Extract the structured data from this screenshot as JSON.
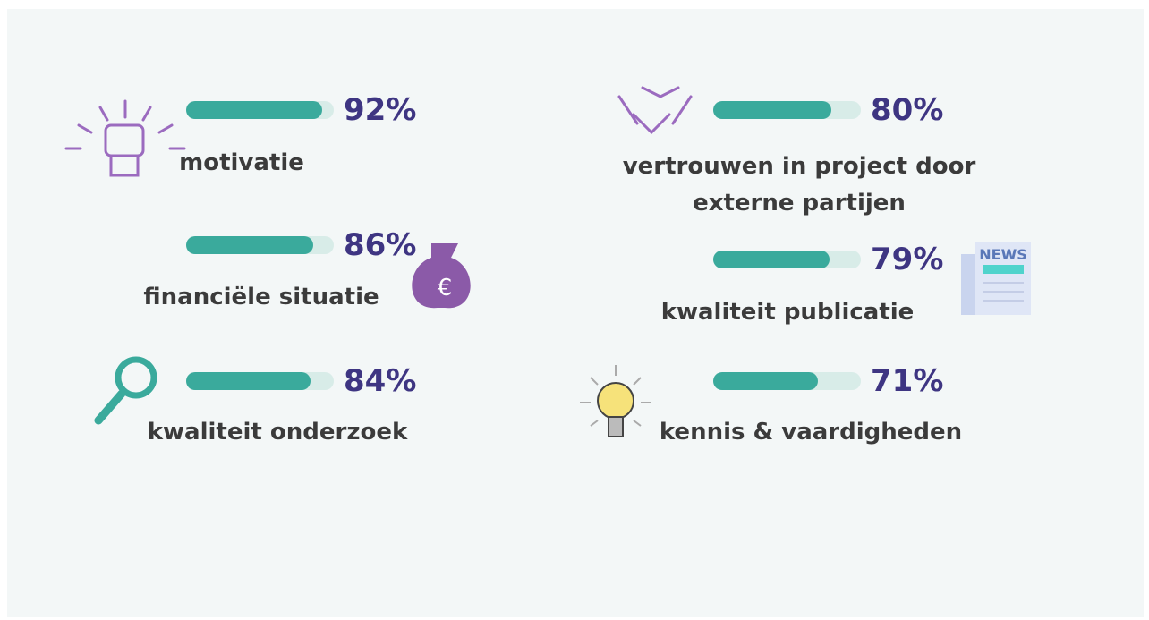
{
  "chart_data": {
    "type": "progress",
    "categories": [
      "motivatie",
      "financiële situatie",
      "kwaliteit onderzoek",
      "vertrouwen in project door externe partijen",
      "kwaliteit publicatie",
      "kennis & vaardigheden"
    ],
    "values": [
      92,
      86,
      84,
      80,
      79,
      71
    ],
    "value_labels": [
      "92%",
      "86%",
      "84%",
      "80%",
      "79%",
      "71%"
    ],
    "xlim": [
      0,
      100
    ],
    "color": "#3aaa9c",
    "track_color": "#d8ece8"
  }
}
